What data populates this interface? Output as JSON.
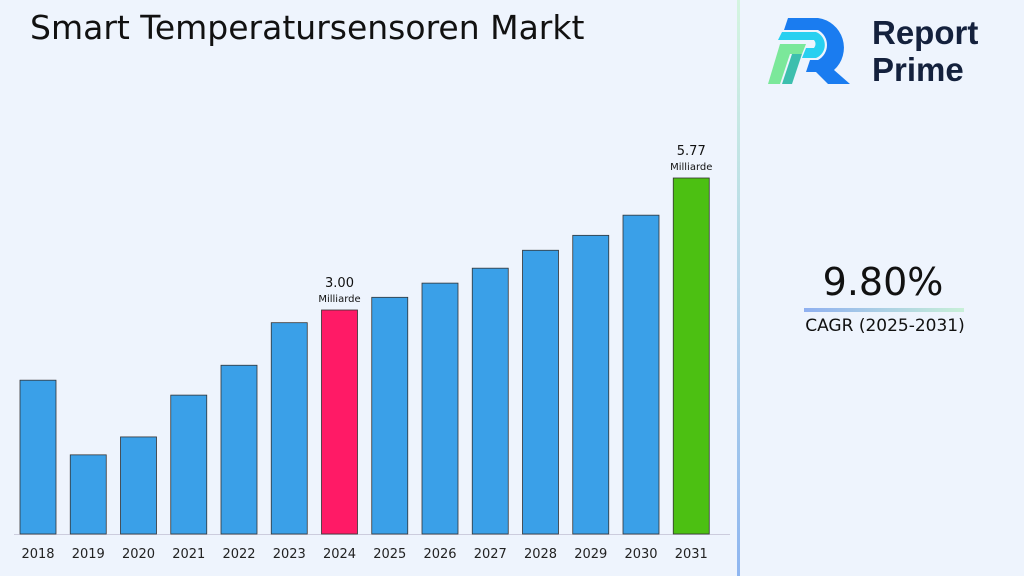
{
  "title": "Smart Temperatursensoren Markt",
  "logo": {
    "line1": "Report",
    "line2": "Prime"
  },
  "cagr": {
    "value": "9.80%",
    "label": "CAGR (2025-2031)"
  },
  "chart_data": {
    "type": "bar",
    "categories": [
      "2018",
      "2019",
      "2020",
      "2021",
      "2022",
      "2023",
      "2024",
      "2025",
      "2026",
      "2027",
      "2028",
      "2029",
      "2030",
      "2031"
    ],
    "values": [
      2.06,
      1.06,
      1.3,
      1.86,
      2.26,
      2.83,
      3.0,
      3.17,
      3.36,
      3.56,
      3.8,
      4.0,
      4.27,
      5.77
    ],
    "colors": {
      "default": "#3aa0e8",
      "highlight_2024": "#ff1a66",
      "highlight_2031": "#4cc012"
    },
    "annotations": [
      {
        "category": "2024",
        "value": "3.00",
        "unit": "Milliarde"
      },
      {
        "category": "2031",
        "value": "5.77",
        "unit": "Milliarde"
      }
    ],
    "title": "Smart Temperatursensoren Markt",
    "xlabel": "",
    "ylabel": "",
    "grid": false
  }
}
